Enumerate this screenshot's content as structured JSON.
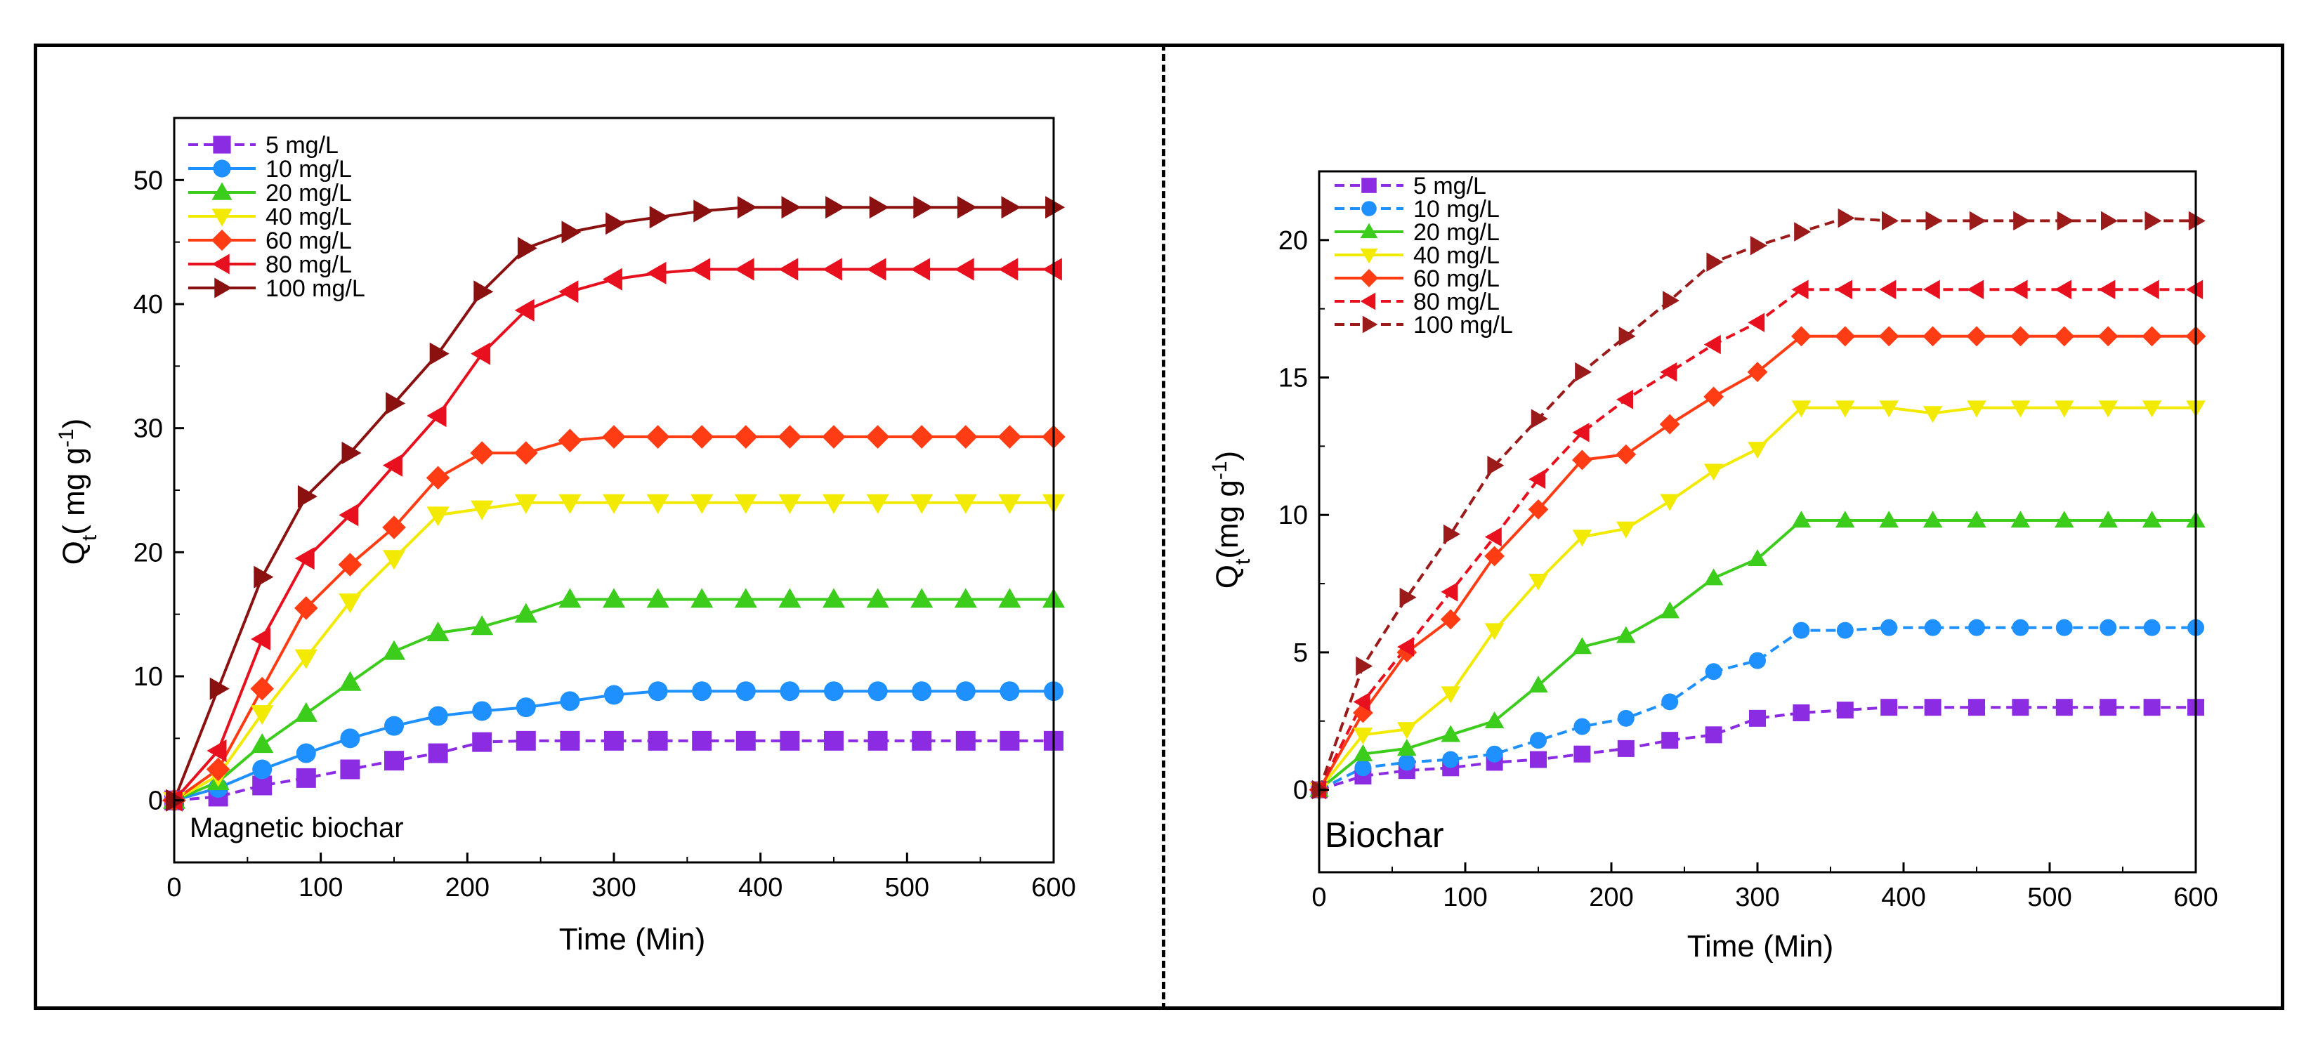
{
  "chart_data": [
    {
      "type": "line",
      "panel_label": "Magnetic biochar",
      "xlabel": "Time (Min)",
      "ylabel": "Q",
      "ylabel_sub": "t",
      "ylabel_units": "( mg g",
      "ylabel_exp": "-1",
      "ylabel_close": ")",
      "xlim": [
        0,
        600
      ],
      "ylim": [
        -5,
        55
      ],
      "xticks": [
        0,
        100,
        200,
        300,
        400,
        500,
        600
      ],
      "yticks": [
        0,
        10,
        20,
        30,
        40,
        50
      ],
      "x": [
        0,
        30,
        60,
        90,
        120,
        150,
        180,
        210,
        240,
        270,
        300,
        330,
        360,
        390,
        420,
        450,
        480,
        510,
        540,
        570,
        600
      ],
      "series": [
        {
          "name": "5 mg/L",
          "color": "#8b2be2",
          "marker": "square",
          "dash": true,
          "values": [
            0,
            0.3,
            1.2,
            1.8,
            2.5,
            3.2,
            3.8,
            4.7,
            4.8,
            4.8,
            4.8,
            4.8,
            4.8,
            4.8,
            4.8,
            4.8,
            4.8,
            4.8,
            4.8,
            4.8,
            4.8
          ]
        },
        {
          "name": "10 mg/L",
          "color": "#1e90ff",
          "marker": "circle",
          "dash": false,
          "values": [
            0,
            1,
            2.5,
            3.8,
            5,
            6,
            6.8,
            7.2,
            7.5,
            8,
            8.5,
            8.8,
            8.8,
            8.8,
            8.8,
            8.8,
            8.8,
            8.8,
            8.8,
            8.8,
            8.8
          ]
        },
        {
          "name": "20 mg/L",
          "color": "#3ccc1c",
          "marker": "triangle-up",
          "dash": false,
          "values": [
            0,
            1.5,
            4.5,
            7,
            9.5,
            12,
            13.5,
            14,
            15,
            16.2,
            16.2,
            16.2,
            16.2,
            16.2,
            16.2,
            16.2,
            16.2,
            16.2,
            16.2,
            16.2,
            16.2
          ]
        },
        {
          "name": "40 mg/L",
          "color": "#f2ea00",
          "marker": "triangle-down",
          "dash": false,
          "values": [
            0,
            2,
            7,
            11.5,
            16,
            19.5,
            23,
            23.5,
            24,
            24,
            24,
            24,
            24,
            24,
            24,
            24,
            24,
            24,
            24,
            24,
            24
          ]
        },
        {
          "name": "60 mg/L",
          "color": "#ff3c14",
          "marker": "diamond",
          "dash": false,
          "values": [
            0,
            2.5,
            9,
            15.5,
            19,
            22,
            26,
            28,
            28,
            29,
            29.3,
            29.3,
            29.3,
            29.3,
            29.3,
            29.3,
            29.3,
            29.3,
            29.3,
            29.3,
            29.3
          ]
        },
        {
          "name": "80 mg/L",
          "color": "#e8101e",
          "marker": "triangle-left",
          "dash": false,
          "values": [
            0,
            4,
            13,
            19.5,
            23,
            27,
            31,
            36,
            39.5,
            41,
            42,
            42.5,
            42.8,
            42.8,
            42.8,
            42.8,
            42.8,
            42.8,
            42.8,
            42.8,
            42.8
          ]
        },
        {
          "name": "100 mg/L",
          "color": "#8b1010",
          "marker": "triangle-right",
          "dash": false,
          "values": [
            0,
            9,
            18,
            24.5,
            28,
            32,
            36,
            41,
            44.5,
            45.8,
            46.5,
            47,
            47.5,
            47.8,
            47.8,
            47.8,
            47.8,
            47.8,
            47.8,
            47.8,
            47.8
          ]
        }
      ]
    },
    {
      "type": "line",
      "panel_label": "Biochar",
      "xlabel": "Time (Min)",
      "ylabel": "Q",
      "ylabel_sub": "t",
      "ylabel_units": "(mg g",
      "ylabel_exp": "-1",
      "ylabel_close": ")",
      "xlim": [
        0,
        600
      ],
      "ylim": [
        -3,
        22.5
      ],
      "xticks": [
        0,
        100,
        200,
        300,
        400,
        500,
        600
      ],
      "yticks": [
        0,
        5,
        10,
        15,
        20
      ],
      "x": [
        0,
        30,
        60,
        90,
        120,
        150,
        180,
        210,
        240,
        270,
        300,
        330,
        360,
        390,
        420,
        450,
        480,
        510,
        540,
        570,
        600
      ],
      "series": [
        {
          "name": "5 mg/L",
          "color": "#8b2be2",
          "marker": "square",
          "dash": true,
          "values": [
            0,
            0.5,
            0.7,
            0.8,
            1,
            1.1,
            1.3,
            1.5,
            1.8,
            2,
            2.6,
            2.8,
            2.9,
            3,
            3,
            3,
            3,
            3,
            3,
            3,
            3
          ]
        },
        {
          "name": "10 mg/L",
          "color": "#1e90ff",
          "marker": "circle",
          "dash": true,
          "values": [
            0,
            0.8,
            1,
            1.1,
            1.3,
            1.8,
            2.3,
            2.6,
            3.2,
            4.3,
            4.7,
            5.8,
            5.8,
            5.9,
            5.9,
            5.9,
            5.9,
            5.9,
            5.9,
            5.9,
            5.9
          ]
        },
        {
          "name": "20 mg/L",
          "color": "#3ccc1c",
          "marker": "triangle-up",
          "dash": false,
          "values": [
            0,
            1.3,
            1.5,
            2,
            2.5,
            3.8,
            5.2,
            5.6,
            6.5,
            7.7,
            8.4,
            9.8,
            9.8,
            9.8,
            9.8,
            9.8,
            9.8,
            9.8,
            9.8,
            9.8,
            9.8
          ]
        },
        {
          "name": "40 mg/L",
          "color": "#f2ea00",
          "marker": "triangle-down",
          "dash": false,
          "values": [
            0,
            2,
            2.2,
            3.5,
            5.8,
            7.6,
            9.2,
            9.5,
            10.5,
            11.6,
            12.4,
            13.9,
            13.9,
            13.9,
            13.7,
            13.9,
            13.9,
            13.9,
            13.9,
            13.9,
            13.9
          ]
        },
        {
          "name": "60 mg/L",
          "color": "#ff3c14",
          "marker": "diamond",
          "dash": false,
          "values": [
            0,
            2.8,
            5,
            6.2,
            8.5,
            10.2,
            12,
            12.2,
            13.3,
            14.3,
            15.2,
            16.5,
            16.5,
            16.5,
            16.5,
            16.5,
            16.5,
            16.5,
            16.5,
            16.5,
            16.5
          ]
        },
        {
          "name": "80 mg/L",
          "color": "#e8101e",
          "marker": "triangle-left",
          "dash": true,
          "values": [
            0,
            3.2,
            5.2,
            7.2,
            9.2,
            11.3,
            13,
            14.2,
            15.2,
            16.2,
            17,
            18.2,
            18.2,
            18.2,
            18.2,
            18.2,
            18.2,
            18.2,
            18.2,
            18.2,
            18.2
          ]
        },
        {
          "name": "100 mg/L",
          "color": "#9b1b1b",
          "marker": "triangle-right",
          "dash": true,
          "values": [
            0,
            4.5,
            7,
            9.3,
            11.8,
            13.5,
            15.2,
            16.5,
            17.8,
            19.2,
            19.8,
            20.3,
            20.8,
            20.7,
            20.7,
            20.7,
            20.7,
            20.7,
            20.7,
            20.7,
            20.7
          ]
        }
      ]
    }
  ]
}
